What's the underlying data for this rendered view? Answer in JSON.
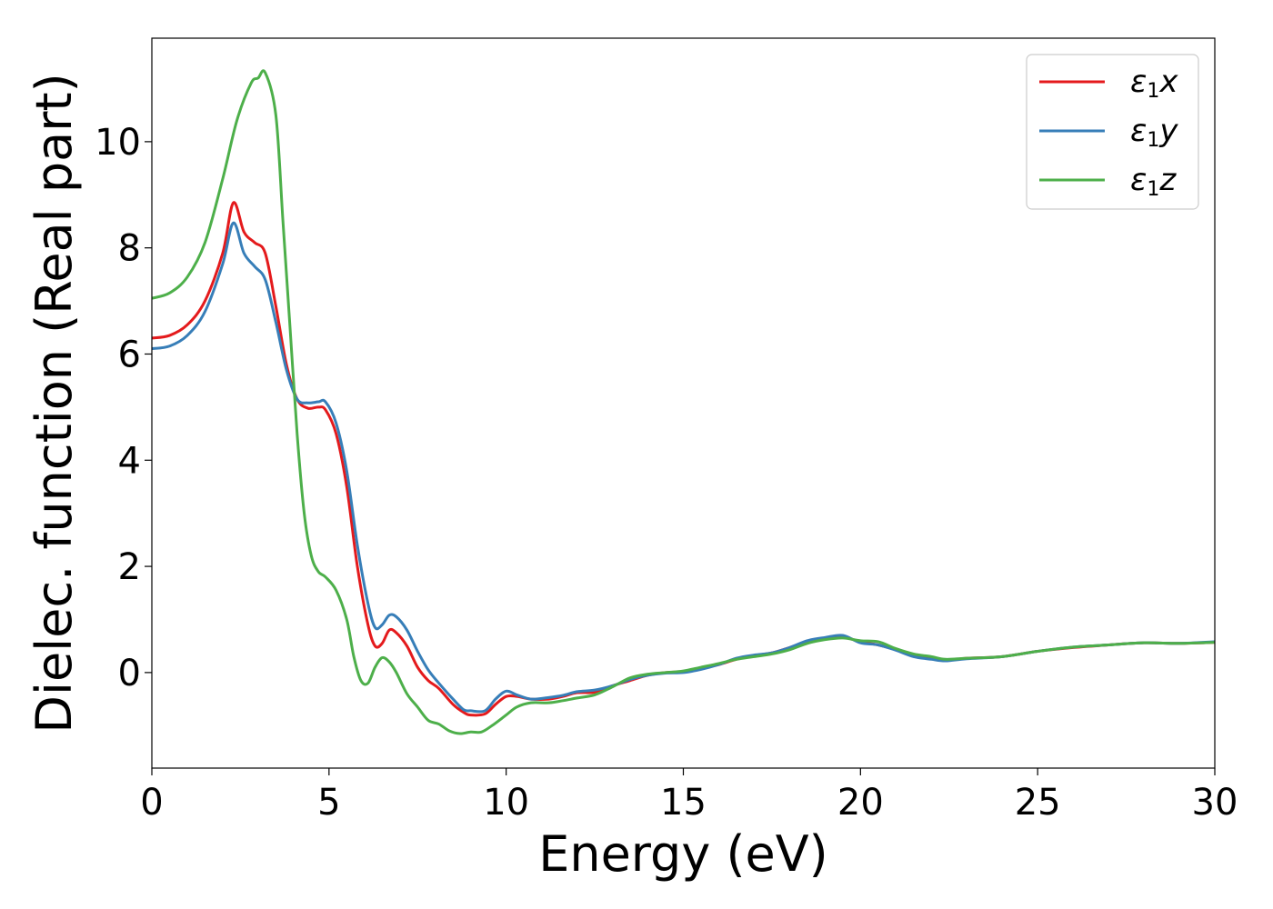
{
  "chart_data": {
    "type": "line",
    "title": "",
    "xlabel": "Energy (eV)",
    "ylabel": "Dielec. function (Real part)",
    "xlim": [
      0,
      30
    ],
    "ylim": [
      -1.8,
      11.95
    ],
    "xticks": [
      0,
      5,
      10,
      15,
      20,
      25,
      30
    ],
    "yticks": [
      0,
      2,
      4,
      6,
      8,
      10
    ],
    "grid": false,
    "legend_position": "top-right",
    "series": [
      {
        "name": "ε₁x",
        "legend": {
          "base": "ε",
          "sub": "1",
          "var": "x"
        },
        "color": "#e41a1c",
        "points": [
          [
            0,
            6.3
          ],
          [
            0.5,
            6.35
          ],
          [
            1,
            6.55
          ],
          [
            1.5,
            7.0
          ],
          [
            2,
            7.9
          ],
          [
            2.3,
            8.85
          ],
          [
            2.6,
            8.3
          ],
          [
            2.9,
            8.1
          ],
          [
            3.2,
            7.9
          ],
          [
            3.5,
            6.9
          ],
          [
            3.8,
            5.8
          ],
          [
            4.1,
            5.15
          ],
          [
            4.4,
            4.98
          ],
          [
            4.7,
            5.0
          ],
          [
            4.9,
            4.95
          ],
          [
            5.2,
            4.5
          ],
          [
            5.5,
            3.5
          ],
          [
            5.8,
            2.0
          ],
          [
            6.1,
            0.9
          ],
          [
            6.3,
            0.5
          ],
          [
            6.5,
            0.55
          ],
          [
            6.7,
            0.8
          ],
          [
            6.9,
            0.75
          ],
          [
            7.2,
            0.5
          ],
          [
            7.5,
            0.1
          ],
          [
            7.8,
            -0.15
          ],
          [
            8.1,
            -0.3
          ],
          [
            8.5,
            -0.6
          ],
          [
            8.8,
            -0.75
          ],
          [
            9.0,
            -0.8
          ],
          [
            9.4,
            -0.78
          ],
          [
            9.7,
            -0.6
          ],
          [
            10.0,
            -0.45
          ],
          [
            10.3,
            -0.45
          ],
          [
            10.7,
            -0.5
          ],
          [
            11.2,
            -0.5
          ],
          [
            11.6,
            -0.45
          ],
          [
            12.0,
            -0.38
          ],
          [
            12.5,
            -0.37
          ],
          [
            13.0,
            -0.25
          ],
          [
            13.5,
            -0.15
          ],
          [
            14.0,
            -0.05
          ],
          [
            14.5,
            0.0
          ],
          [
            15.0,
            0.02
          ],
          [
            15.5,
            0.08
          ],
          [
            16.0,
            0.15
          ],
          [
            16.5,
            0.25
          ],
          [
            17.0,
            0.32
          ],
          [
            17.5,
            0.37
          ],
          [
            18.0,
            0.47
          ],
          [
            18.5,
            0.58
          ],
          [
            19.0,
            0.64
          ],
          [
            19.5,
            0.67
          ],
          [
            20.0,
            0.58
          ],
          [
            20.5,
            0.52
          ],
          [
            21.0,
            0.43
          ],
          [
            21.5,
            0.33
          ],
          [
            22.0,
            0.27
          ],
          [
            22.4,
            0.23
          ],
          [
            23.0,
            0.27
          ],
          [
            24.0,
            0.3
          ],
          [
            25.0,
            0.4
          ],
          [
            26.0,
            0.47
          ],
          [
            27.0,
            0.52
          ],
          [
            28.0,
            0.56
          ],
          [
            29.0,
            0.55
          ],
          [
            30.0,
            0.57
          ]
        ]
      },
      {
        "name": "ε₁y",
        "legend": {
          "base": "ε",
          "sub": "1",
          "var": "y"
        },
        "color": "#377eb8",
        "points": [
          [
            0,
            6.1
          ],
          [
            0.5,
            6.15
          ],
          [
            1,
            6.35
          ],
          [
            1.5,
            6.8
          ],
          [
            2,
            7.7
          ],
          [
            2.3,
            8.47
          ],
          [
            2.6,
            7.9
          ],
          [
            2.9,
            7.65
          ],
          [
            3.2,
            7.4
          ],
          [
            3.5,
            6.6
          ],
          [
            3.8,
            5.7
          ],
          [
            4.1,
            5.15
          ],
          [
            4.4,
            5.08
          ],
          [
            4.7,
            5.1
          ],
          [
            4.9,
            5.1
          ],
          [
            5.2,
            4.7
          ],
          [
            5.5,
            3.8
          ],
          [
            5.8,
            2.4
          ],
          [
            6.1,
            1.3
          ],
          [
            6.3,
            0.85
          ],
          [
            6.5,
            0.9
          ],
          [
            6.7,
            1.08
          ],
          [
            6.9,
            1.05
          ],
          [
            7.2,
            0.8
          ],
          [
            7.5,
            0.4
          ],
          [
            7.8,
            0.05
          ],
          [
            8.1,
            -0.2
          ],
          [
            8.5,
            -0.5
          ],
          [
            8.8,
            -0.7
          ],
          [
            9.0,
            -0.72
          ],
          [
            9.4,
            -0.72
          ],
          [
            9.7,
            -0.5
          ],
          [
            10.0,
            -0.35
          ],
          [
            10.3,
            -0.42
          ],
          [
            10.7,
            -0.5
          ],
          [
            11.2,
            -0.47
          ],
          [
            11.6,
            -0.43
          ],
          [
            12.0,
            -0.36
          ],
          [
            12.5,
            -0.33
          ],
          [
            13.0,
            -0.25
          ],
          [
            13.5,
            -0.13
          ],
          [
            14.0,
            -0.05
          ],
          [
            14.5,
            -0.01
          ],
          [
            15.0,
            0.0
          ],
          [
            15.5,
            0.06
          ],
          [
            16.0,
            0.15
          ],
          [
            16.5,
            0.27
          ],
          [
            17.0,
            0.33
          ],
          [
            17.5,
            0.37
          ],
          [
            18.0,
            0.47
          ],
          [
            18.5,
            0.6
          ],
          [
            19.0,
            0.66
          ],
          [
            19.5,
            0.7
          ],
          [
            20.0,
            0.56
          ],
          [
            20.5,
            0.52
          ],
          [
            21.0,
            0.42
          ],
          [
            21.5,
            0.3
          ],
          [
            22.0,
            0.25
          ],
          [
            22.4,
            0.22
          ],
          [
            23.0,
            0.26
          ],
          [
            24.0,
            0.3
          ],
          [
            25.0,
            0.4
          ],
          [
            26.0,
            0.48
          ],
          [
            27.0,
            0.52
          ],
          [
            28.0,
            0.56
          ],
          [
            29.0,
            0.55
          ],
          [
            30.0,
            0.58
          ]
        ]
      },
      {
        "name": "ε₁z",
        "legend": {
          "base": "ε",
          "sub": "1",
          "var": "z"
        },
        "color": "#4daf4a",
        "points": [
          [
            0,
            7.05
          ],
          [
            0.5,
            7.15
          ],
          [
            1,
            7.45
          ],
          [
            1.5,
            8.1
          ],
          [
            2,
            9.3
          ],
          [
            2.4,
            10.4
          ],
          [
            2.8,
            11.1
          ],
          [
            3.0,
            11.2
          ],
          [
            3.2,
            11.3
          ],
          [
            3.5,
            10.5
          ],
          [
            3.7,
            8.5
          ],
          [
            3.9,
            6.5
          ],
          [
            4.1,
            4.5
          ],
          [
            4.3,
            3.0
          ],
          [
            4.5,
            2.2
          ],
          [
            4.7,
            1.9
          ],
          [
            4.9,
            1.8
          ],
          [
            5.2,
            1.55
          ],
          [
            5.5,
            1.0
          ],
          [
            5.7,
            0.3
          ],
          [
            5.9,
            -0.15
          ],
          [
            6.1,
            -0.2
          ],
          [
            6.3,
            0.1
          ],
          [
            6.5,
            0.28
          ],
          [
            6.7,
            0.2
          ],
          [
            6.9,
            0.0
          ],
          [
            7.2,
            -0.4
          ],
          [
            7.5,
            -0.65
          ],
          [
            7.8,
            -0.9
          ],
          [
            8.1,
            -0.97
          ],
          [
            8.4,
            -1.1
          ],
          [
            8.7,
            -1.15
          ],
          [
            9.0,
            -1.12
          ],
          [
            9.3,
            -1.12
          ],
          [
            9.6,
            -1.0
          ],
          [
            10.0,
            -0.8
          ],
          [
            10.3,
            -0.65
          ],
          [
            10.7,
            -0.57
          ],
          [
            11.2,
            -0.57
          ],
          [
            11.6,
            -0.53
          ],
          [
            12.0,
            -0.48
          ],
          [
            12.5,
            -0.42
          ],
          [
            13.0,
            -0.27
          ],
          [
            13.5,
            -0.1
          ],
          [
            14.0,
            -0.03
          ],
          [
            14.5,
            0.0
          ],
          [
            15.0,
            0.03
          ],
          [
            15.5,
            0.1
          ],
          [
            16.0,
            0.17
          ],
          [
            16.5,
            0.25
          ],
          [
            17.0,
            0.3
          ],
          [
            17.5,
            0.35
          ],
          [
            18.0,
            0.43
          ],
          [
            18.5,
            0.55
          ],
          [
            19.0,
            0.62
          ],
          [
            19.5,
            0.65
          ],
          [
            20.0,
            0.6
          ],
          [
            20.5,
            0.58
          ],
          [
            21.0,
            0.45
          ],
          [
            21.5,
            0.35
          ],
          [
            22.0,
            0.3
          ],
          [
            22.4,
            0.25
          ],
          [
            23.0,
            0.27
          ],
          [
            24.0,
            0.3
          ],
          [
            25.0,
            0.4
          ],
          [
            26.0,
            0.48
          ],
          [
            27.0,
            0.52
          ],
          [
            28.0,
            0.56
          ],
          [
            29.0,
            0.55
          ],
          [
            30.0,
            0.57
          ]
        ]
      }
    ]
  }
}
